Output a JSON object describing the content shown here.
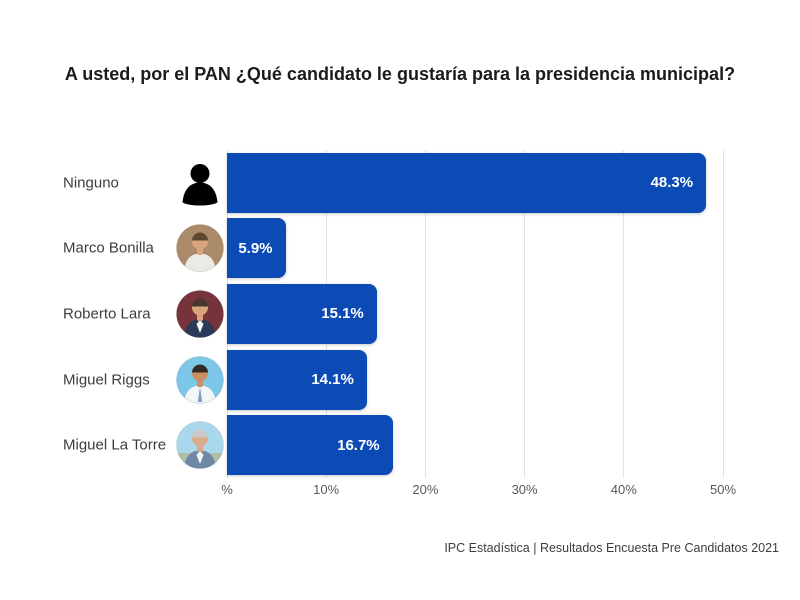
{
  "title": "A usted, por el PAN ¿Qué candidato le gustaría para la presidencia municipal?",
  "footer": "IPC Estadística | Resultados Encuesta Pre Candidatos 2021",
  "colors": {
    "bar": "#0c4ab5",
    "grid": "#e2e2e2",
    "axis_text": "#595959",
    "category_text": "#3d3d3d",
    "value_text": "#ffffff",
    "title_text": "#1b1b1b"
  },
  "chart_data": {
    "type": "bar",
    "orientation": "horizontal",
    "title": "A usted, por el PAN ¿Qué candidato le gustaría para la presidencia municipal?",
    "categories": [
      "Ninguno",
      "Marco Bonilla",
      "Roberto Lara",
      "Miguel Riggs",
      "Miguel La Torre"
    ],
    "values": [
      48.3,
      5.9,
      15.1,
      14.1,
      16.7
    ],
    "value_labels": [
      "48.3%",
      "5.9%",
      "15.1%",
      "14.1%",
      "16.7%"
    ],
    "x_ticks": [
      {
        "value": 0,
        "label": "%"
      },
      {
        "value": 10,
        "label": "10%"
      },
      {
        "value": 20,
        "label": "20%"
      },
      {
        "value": 30,
        "label": "30%"
      },
      {
        "value": 40,
        "label": "40%"
      },
      {
        "value": 50,
        "label": "50%"
      }
    ],
    "xlim": [
      0,
      50
    ],
    "grid": true,
    "legend": false,
    "xlabel": "",
    "ylabel": "",
    "avatars": [
      {
        "type": "silhouette",
        "slug": "ninguno",
        "color": "#000000"
      },
      {
        "type": "photo",
        "slug": "marco-bonilla",
        "bg": "#ab8a6a",
        "shirt": "#eceae4",
        "skin": "#d9a47b",
        "hair": "#5d4632"
      },
      {
        "type": "photo",
        "slug": "roberto-lara",
        "bg": "#76343a",
        "shirt": "#2a3a58",
        "collar": "#f5f5f5",
        "skin": "#d9a47b",
        "hair": "#47362a"
      },
      {
        "type": "photo",
        "slug": "miguel-riggs",
        "bg": "#7cc7e8",
        "shirt": "#f3f5f7",
        "tie": "#7d9cc0",
        "skin": "#c98f66",
        "hair": "#332c26"
      },
      {
        "type": "photo",
        "slug": "miguel-la-torre",
        "bg": "#a9d8ec",
        "bg2": "#aebfa6",
        "shirt": "#6f88a6",
        "collar": "#f5f5f5",
        "skin": "#d9ab8a",
        "hair": "#c9c9c9"
      }
    ]
  }
}
